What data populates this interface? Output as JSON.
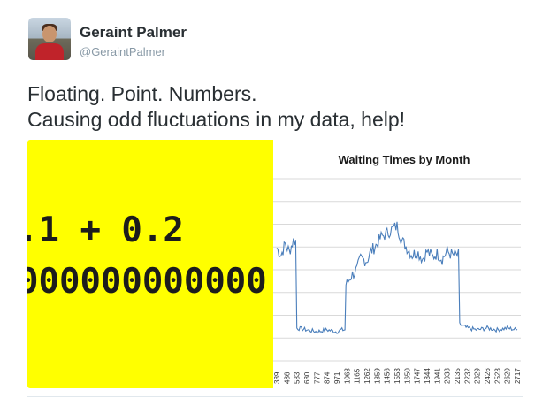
{
  "tweet": {
    "display_name": "Geraint Palmer",
    "handle": "@GeraintPalmer",
    "text_lines": [
      "Floating. Point. Numbers.",
      "Causing odd fluctuations in my data, help!"
    ]
  },
  "media": {
    "code_lines": [
      ".1 + 0.2",
      "000000000000"
    ],
    "panel_color": "#ffff00"
  },
  "chart_data": {
    "type": "line",
    "title": "Waiting Times by Month",
    "xlabel": "",
    "ylabel": "",
    "grid": true,
    "line_color": "#4a7ebb",
    "x_tick_labels": [
      "389",
      "486",
      "583",
      "680",
      "777",
      "874",
      "971",
      "1068",
      "1165",
      "1262",
      "1359",
      "1456",
      "1553",
      "1650",
      "1747",
      "1844",
      "1941",
      "2038",
      "2135",
      "2232",
      "2329",
      "2426",
      "2523",
      "2620",
      "2717"
    ],
    "y_gridline_count": 8,
    "series": [
      {
        "segments_description_free": true,
        "x": [
          "389",
          "430",
          "470",
          "510",
          "550",
          "583",
          "680",
          "777",
          "874",
          "971",
          "1010",
          "1068",
          "1100",
          "1165",
          "1200",
          "1262",
          "1300",
          "1359",
          "1400",
          "1456",
          "1500",
          "1553",
          "1600",
          "1650",
          "1700",
          "1747",
          "1800",
          "1844",
          "1900",
          "1941",
          "1990",
          "2038",
          "2090",
          "2135",
          "2160",
          "2232",
          "2329",
          "2426",
          "2523",
          "2620",
          "2717"
        ],
        "values": [
          0.62,
          0.58,
          0.64,
          0.6,
          0.66,
          0.18,
          0.17,
          0.16,
          0.17,
          0.16,
          0.17,
          0.42,
          0.46,
          0.5,
          0.56,
          0.55,
          0.6,
          0.64,
          0.68,
          0.7,
          0.72,
          0.74,
          0.66,
          0.62,
          0.58,
          0.6,
          0.56,
          0.6,
          0.57,
          0.59,
          0.56,
          0.6,
          0.58,
          0.58,
          0.2,
          0.18,
          0.17,
          0.18,
          0.17,
          0.18,
          0.17
        ]
      }
    ]
  }
}
